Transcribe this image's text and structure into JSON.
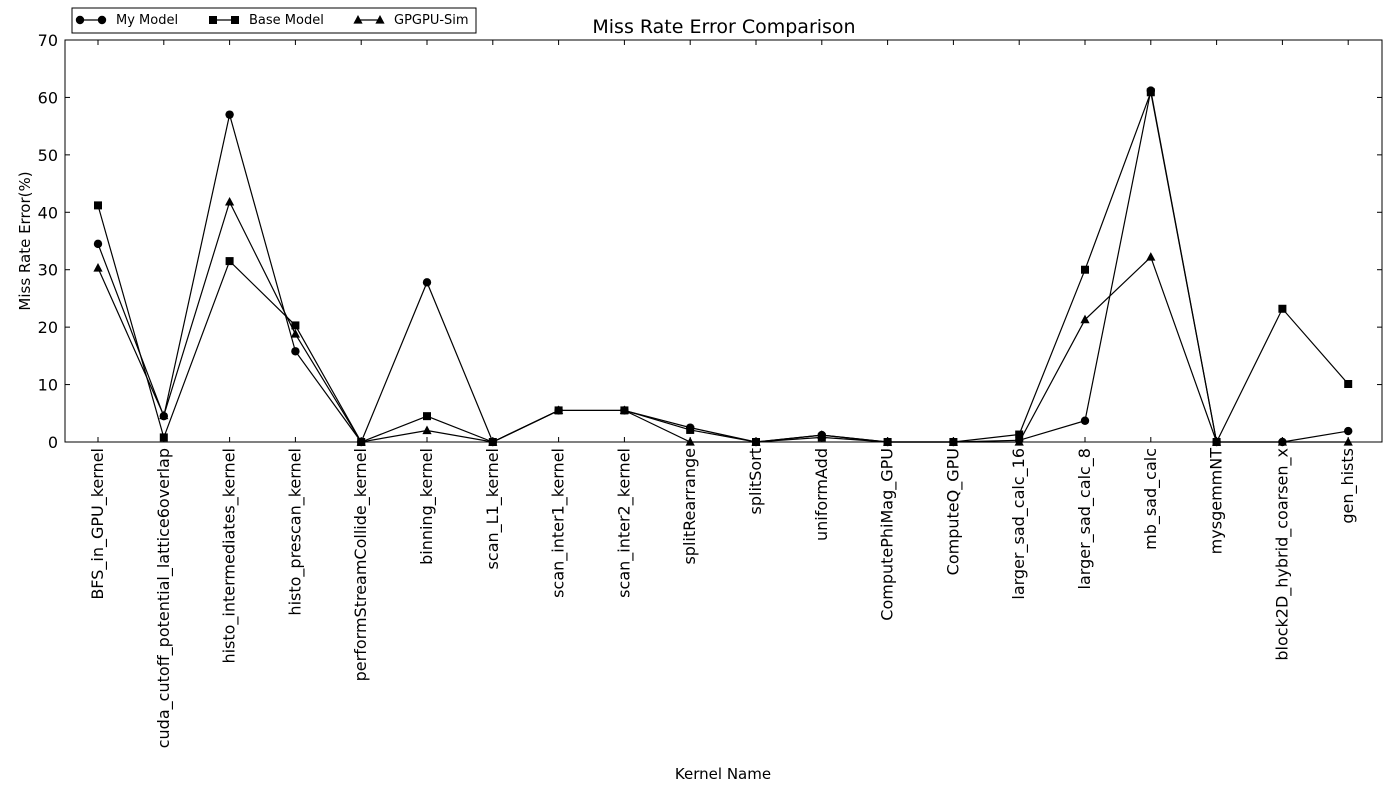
{
  "chart_data": {
    "type": "line",
    "title": "Miss Rate Error Comparison",
    "xlabel": "Kernel Name",
    "ylabel": "Miss Rate Error(%)",
    "ylim": [
      0,
      70
    ],
    "yticks": [
      0,
      10,
      20,
      30,
      40,
      50,
      60,
      70
    ],
    "grid": false,
    "legend_position": "top-left",
    "categories": [
      "BFS_in_GPU_kernel",
      "cuda_cutoff_potential_lattice6overlap",
      "histo_intermediates_kernel",
      "histo_prescan_kernel",
      "performStreamCollide_kernel",
      "binning_kernel",
      "scan_L1_kernel",
      "scan_inter1_kernel",
      "scan_inter2_kernel",
      "splitRearrange",
      "splitSort",
      "uniformAdd",
      "ComputePhiMag_GPU",
      "ComputeQ_GPU",
      "larger_sad_calc_16",
      "larger_sad_calc_8",
      "mb_sad_calc",
      "mysgemmNT",
      "block2D_hybrid_coarsen_x",
      "gen_hists"
    ],
    "series": [
      {
        "name": "My Model",
        "marker": "circle",
        "values": [
          34.5,
          4.5,
          57.0,
          15.8,
          0.0,
          27.8,
          0.0,
          5.5,
          5.5,
          2.5,
          0.0,
          1.2,
          0.0,
          0.0,
          0.3,
          3.7,
          61.2,
          0.0,
          0.0,
          1.9
        ]
      },
      {
        "name": "Base Model",
        "marker": "square",
        "values": [
          41.2,
          0.8,
          31.5,
          20.3,
          0.0,
          4.5,
          0.0,
          5.5,
          5.5,
          2.1,
          0.0,
          0.8,
          0.0,
          0.0,
          1.3,
          30.0,
          60.9,
          0.0,
          23.2,
          10.1
        ]
      },
      {
        "name": "GPGPU-Sim",
        "marker": "triangle",
        "values": [
          30.3,
          4.6,
          41.8,
          18.8,
          0.0,
          2.0,
          0.0,
          5.5,
          5.5,
          0.0,
          0.0,
          1.2,
          0.0,
          0.0,
          0.0,
          21.3,
          32.2,
          0.0,
          0.0,
          0.0
        ]
      }
    ]
  }
}
